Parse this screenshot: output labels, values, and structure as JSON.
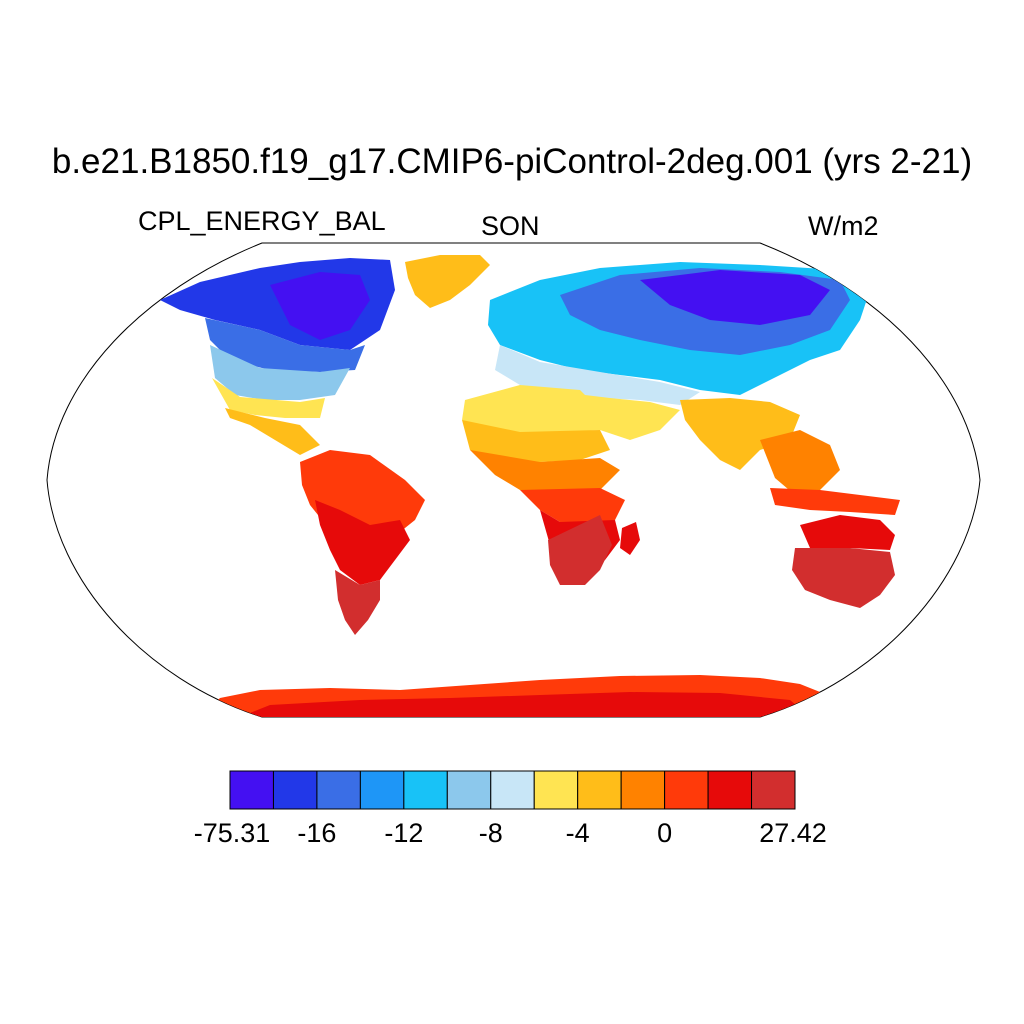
{
  "title": "b.e21.B1850.f19_g17.CMIP6-piControl-2deg.001 (yrs 2-21)",
  "variable": "CPL_ENERGY_BAL",
  "season": "SON",
  "units": "W/m2",
  "colorbar": {
    "colors": [
      "#4410f2",
      "#2238e8",
      "#3a6ee6",
      "#1e96f7",
      "#18c2f7",
      "#8cc8ec",
      "#c8e6f7",
      "#ffe452",
      "#ffbd19",
      "#ff8200",
      "#ff3a0a",
      "#e60a0a",
      "#d22e2e"
    ],
    "labels": [
      "-75.31",
      "-16",
      "-12",
      "-8",
      "-4",
      "0",
      "27.42"
    ]
  },
  "legend_colors": {
    "land_outline": "#000000",
    "ocean": "#ffffff"
  }
}
